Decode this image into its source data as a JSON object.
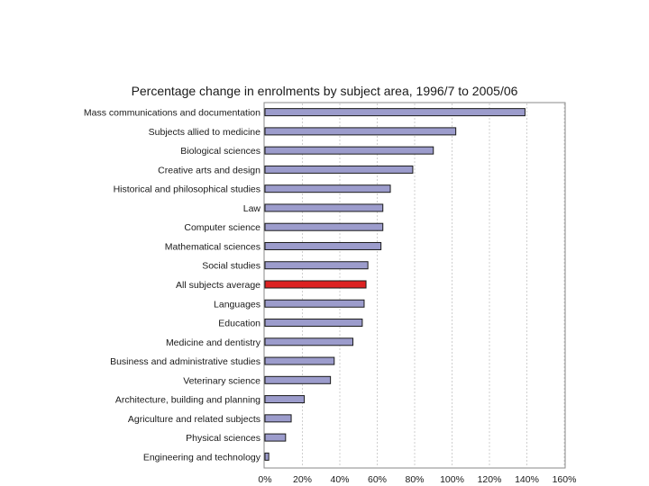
{
  "chart_data": {
    "type": "bar",
    "orientation": "horizontal",
    "title": "Percentage change in enrolments by subject area, 1996/7 to 2005/06",
    "xlabel": "",
    "ylabel": "",
    "xlim": [
      0,
      160
    ],
    "grid": true,
    "categories": [
      "Mass communications and documentation",
      "Subjects allied to medicine",
      "Biological sciences",
      "Creative arts and design",
      "Historical and philosophical studies",
      "Law",
      "Computer science",
      "Mathematical sciences",
      "Social studies",
      "All subjects average",
      "Languages",
      "Education",
      "Medicine and dentistry",
      "Business and administrative studies",
      "Veterinary science",
      "Architecture, building and planning",
      "Agriculture and related subjects",
      "Physical sciences",
      "Engineering and technology"
    ],
    "values": [
      139,
      102,
      90,
      79,
      67,
      63,
      63,
      62,
      55,
      54,
      53,
      52,
      47,
      37,
      35,
      21,
      14,
      11,
      2
    ],
    "highlight_index": 9,
    "ticks": [
      "0%",
      "20%",
      "40%",
      "60%",
      "80%",
      "100%",
      "120%",
      "140%",
      "160%"
    ],
    "tick_values": [
      0,
      20,
      40,
      60,
      80,
      100,
      120,
      140,
      160
    ],
    "colors": {
      "bar": "#9c9ccc",
      "highlight": "#dd2222",
      "bar_edge": "#1a1a1a"
    }
  }
}
